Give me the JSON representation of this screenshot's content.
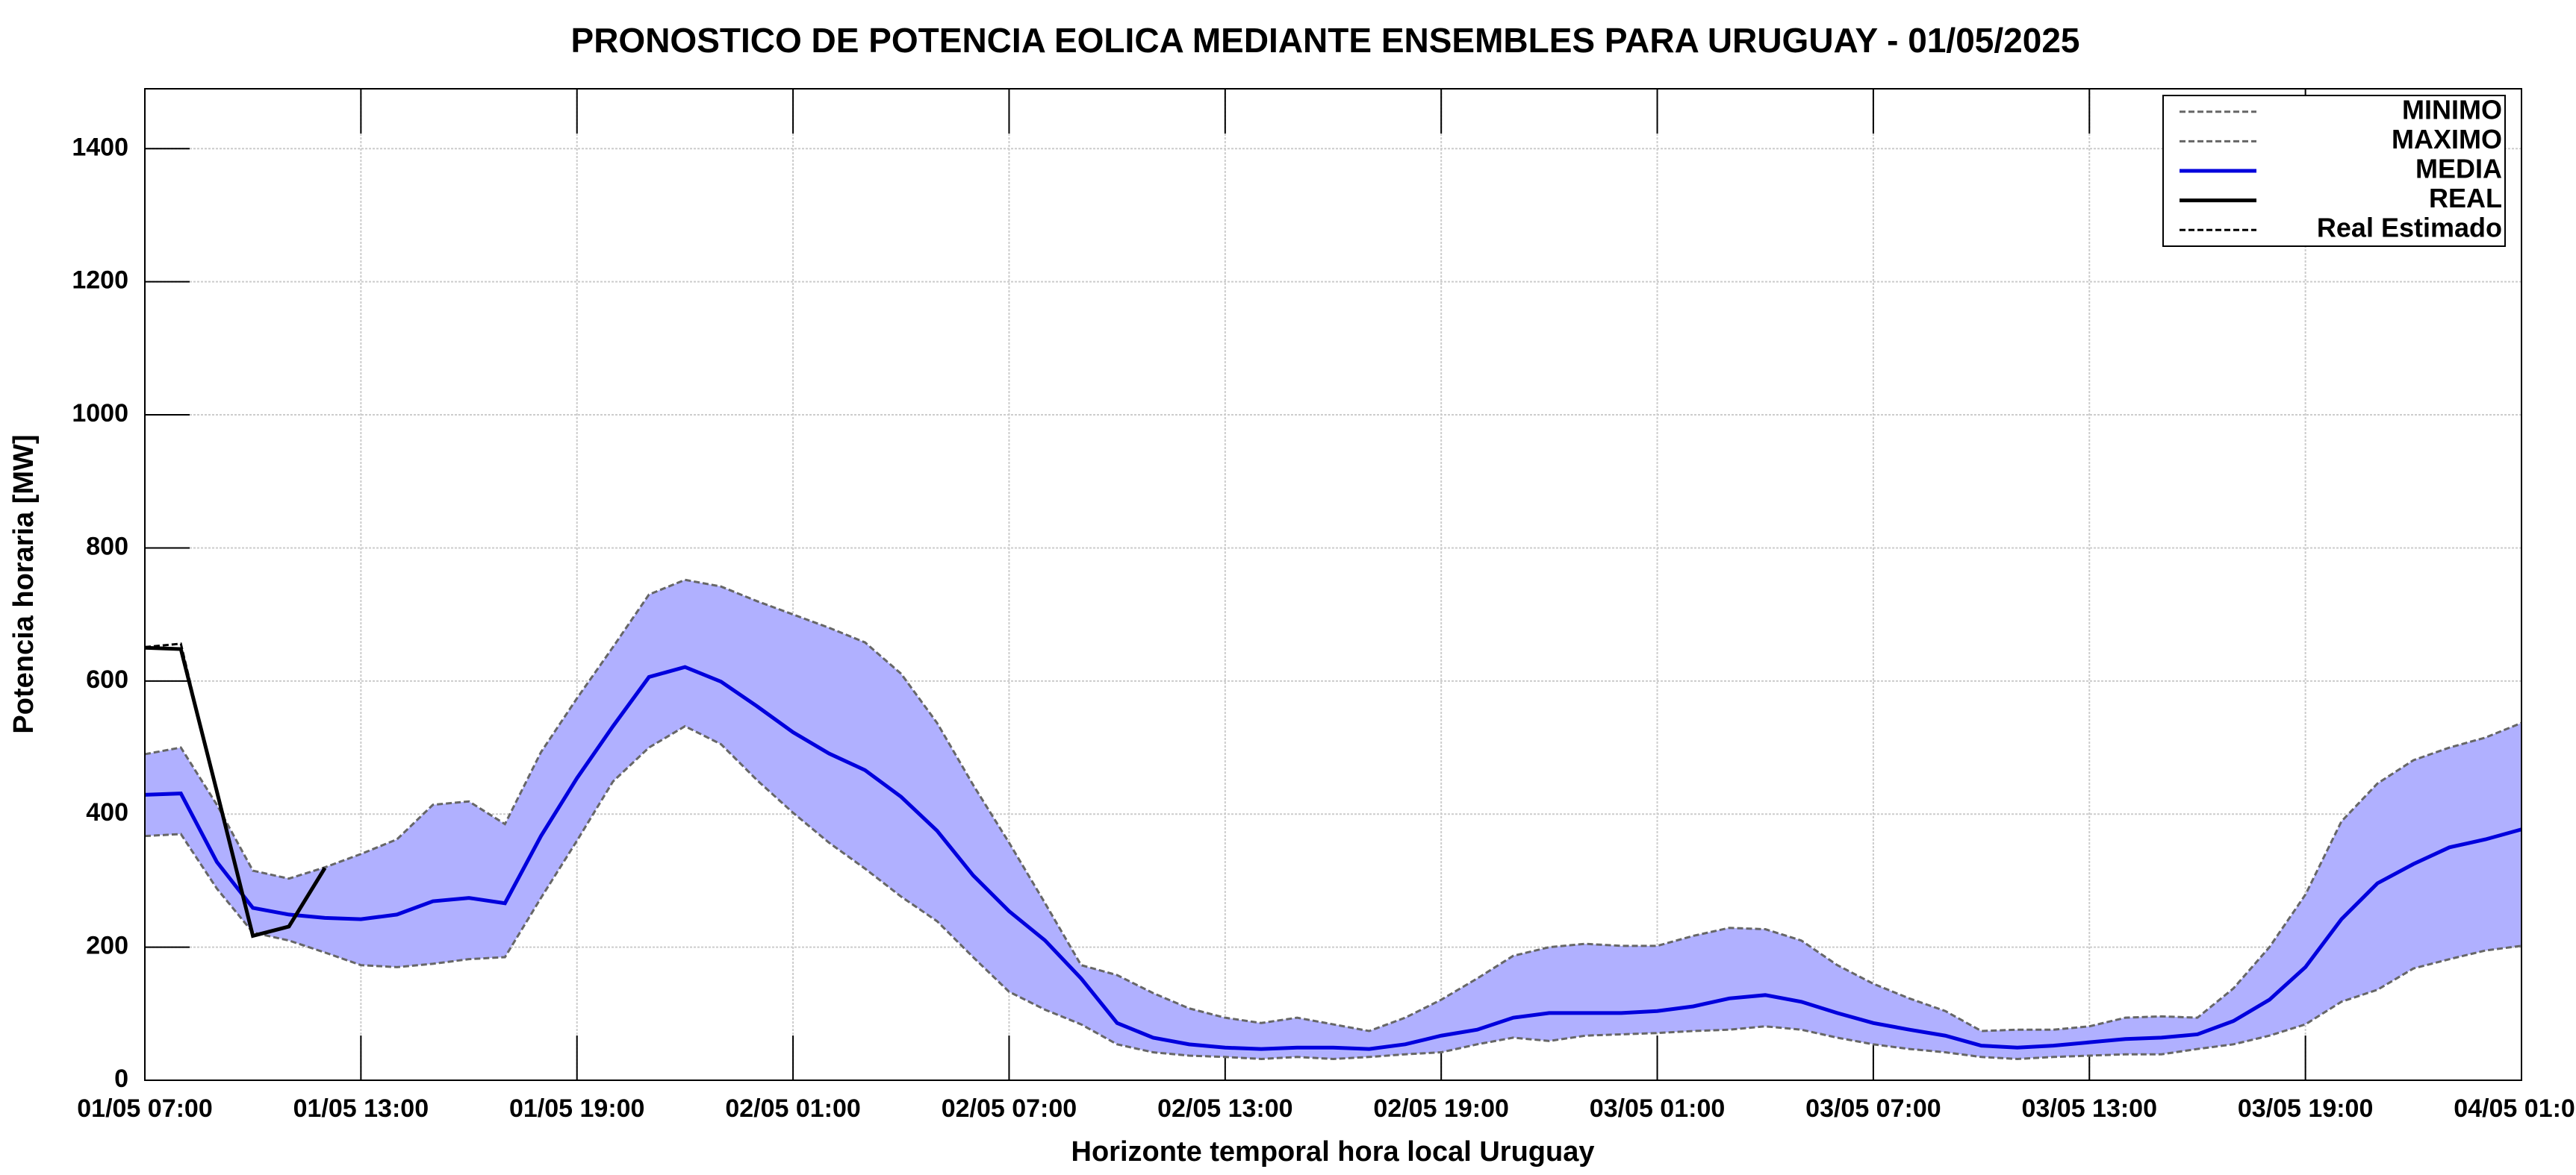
{
  "chart_data": {
    "type": "line",
    "title": "PRONOSTICO DE POTENCIA EOLICA MEDIANTE ENSEMBLES PARA URUGUAY - 01/05/2025",
    "x_label": "Horizonte temporal hora local Uruguay",
    "y_label": "Potencia horaria [MW]",
    "x": [
      "01/05 07:00",
      "01/05 08:00",
      "01/05 09:00",
      "01/05 10:00",
      "01/05 11:00",
      "01/05 12:00",
      "01/05 13:00",
      "01/05 14:00",
      "01/05 15:00",
      "01/05 16:00",
      "01/05 17:00",
      "01/05 18:00",
      "01/05 19:00",
      "01/05 20:00",
      "01/05 21:00",
      "01/05 22:00",
      "01/05 23:00",
      "02/05 00:00",
      "02/05 01:00",
      "02/05 02:00",
      "02/05 03:00",
      "02/05 04:00",
      "02/05 05:00",
      "02/05 06:00",
      "02/05 07:00",
      "02/05 08:00",
      "02/05 09:00",
      "02/05 10:00",
      "02/05 11:00",
      "02/05 12:00",
      "02/05 13:00",
      "02/05 14:00",
      "02/05 15:00",
      "02/05 16:00",
      "02/05 17:00",
      "02/05 18:00",
      "02/05 19:00",
      "02/05 20:00",
      "02/05 21:00",
      "02/05 22:00",
      "02/05 23:00",
      "03/05 00:00",
      "03/05 01:00",
      "03/05 02:00",
      "03/05 03:00",
      "03/05 04:00",
      "03/05 05:00",
      "03/05 06:00",
      "03/05 07:00",
      "03/05 08:00",
      "03/05 09:00",
      "03/05 10:00",
      "03/05 11:00",
      "03/05 12:00",
      "03/05 13:00",
      "03/05 14:00",
      "03/05 15:00",
      "03/05 16:00",
      "03/05 17:00",
      "03/05 18:00",
      "03/05 19:00",
      "03/05 20:00",
      "03/05 21:00",
      "03/05 22:00",
      "03/05 23:00",
      "04/05 00:00",
      "04/05 01:00"
    ],
    "xticks": [
      "01/05 07:00",
      "01/05 13:00",
      "01/05 19:00",
      "02/05 01:00",
      "02/05 07:00",
      "02/05 13:00",
      "02/05 19:00",
      "03/05 01:00",
      "03/05 07:00",
      "03/05 13:00",
      "03/05 19:00",
      "04/05 01:00"
    ],
    "ylim": [
      0,
      1490
    ],
    "yticks": [
      0,
      200,
      400,
      600,
      800,
      1000,
      1200,
      1400
    ],
    "grid": true,
    "legend": "upper right",
    "band_color": "#b0b0ff",
    "series": [
      {
        "name": "MINIMO",
        "color": "#666666",
        "dashed": true,
        "values": [
          367,
          370,
          288,
          222,
          210,
          192,
          173,
          170,
          175,
          182,
          185,
          274,
          360,
          449,
          500,
          532,
          505,
          451,
          402,
          357,
          318,
          276,
          239,
          185,
          133,
          106,
          84,
          54,
          42,
          37,
          35,
          32,
          35,
          32,
          35,
          39,
          42,
          54,
          64,
          59,
          67,
          69,
          71,
          74,
          76,
          81,
          76,
          64,
          54,
          47,
          42,
          35,
          32,
          35,
          37,
          39,
          39,
          47,
          54,
          67,
          84,
          118,
          136,
          168,
          182,
          195,
          202
        ]
      },
      {
        "name": "MAXIMO",
        "color": "#666666",
        "dashed": true,
        "values": [
          490,
          500,
          414,
          315,
          303,
          320,
          340,
          362,
          414,
          419,
          385,
          493,
          574,
          651,
          730,
          752,
          742,
          720,
          700,
          680,
          658,
          611,
          537,
          444,
          357,
          266,
          173,
          158,
          131,
          108,
          94,
          86,
          94,
          84,
          74,
          94,
          121,
          153,
          187,
          200,
          205,
          202,
          202,
          217,
          229,
          227,
          210,
          173,
          145,
          123,
          104,
          74,
          76,
          76,
          81,
          94,
          96,
          94,
          138,
          200,
          279,
          389,
          446,
          481,
          500,
          515,
          537
        ]
      },
      {
        "name": "MEDIA",
        "color": "#0000dd",
        "dashed": false,
        "values": [
          429,
          431,
          328,
          259,
          249,
          244,
          242,
          249,
          269,
          274,
          266,
          367,
          454,
          532,
          606,
          621,
          599,
          562,
          523,
          491,
          466,
          426,
          375,
          308,
          254,
          210,
          153,
          86,
          64,
          54,
          49,
          47,
          49,
          49,
          47,
          54,
          67,
          76,
          94,
          101,
          101,
          101,
          104,
          111,
          123,
          128,
          118,
          101,
          86,
          76,
          67,
          52,
          49,
          52,
          57,
          62,
          64,
          69,
          89,
          121,
          170,
          242,
          296,
          325,
          350,
          362,
          377
        ]
      },
      {
        "name": "REAL",
        "color": "#000000",
        "dashed": false,
        "values": [
          650,
          648,
          434,
          217,
          231,
          319,
          null,
          null,
          null,
          null,
          null,
          null,
          null,
          null,
          null,
          null,
          null,
          null,
          null,
          null,
          null,
          null,
          null,
          null,
          null,
          null,
          null,
          null,
          null,
          null,
          null,
          null,
          null,
          null,
          null,
          null,
          null,
          null,
          null,
          null,
          null,
          null,
          null,
          null,
          null,
          null,
          null,
          null,
          null,
          null,
          null,
          null,
          null,
          null,
          null,
          null,
          null,
          null,
          null,
          null,
          null,
          null,
          null,
          null,
          null,
          null,
          null
        ]
      },
      {
        "name": "Real Estimado",
        "color": "#000000",
        "dashed": true,
        "values": [
          651,
          656,
          430,
          217,
          null,
          null,
          null,
          null,
          null,
          null,
          null,
          null,
          null,
          null,
          null,
          null,
          null,
          null,
          null,
          null,
          null,
          null,
          null,
          null,
          null,
          null,
          null,
          null,
          null,
          null,
          null,
          null,
          null,
          null,
          null,
          null,
          null,
          null,
          null,
          null,
          null,
          null,
          null,
          null,
          null,
          null,
          null,
          null,
          null,
          null,
          null,
          null,
          null,
          null,
          null,
          null,
          null,
          null,
          null,
          null,
          null,
          null,
          null,
          null,
          null,
          null,
          null
        ]
      }
    ]
  }
}
